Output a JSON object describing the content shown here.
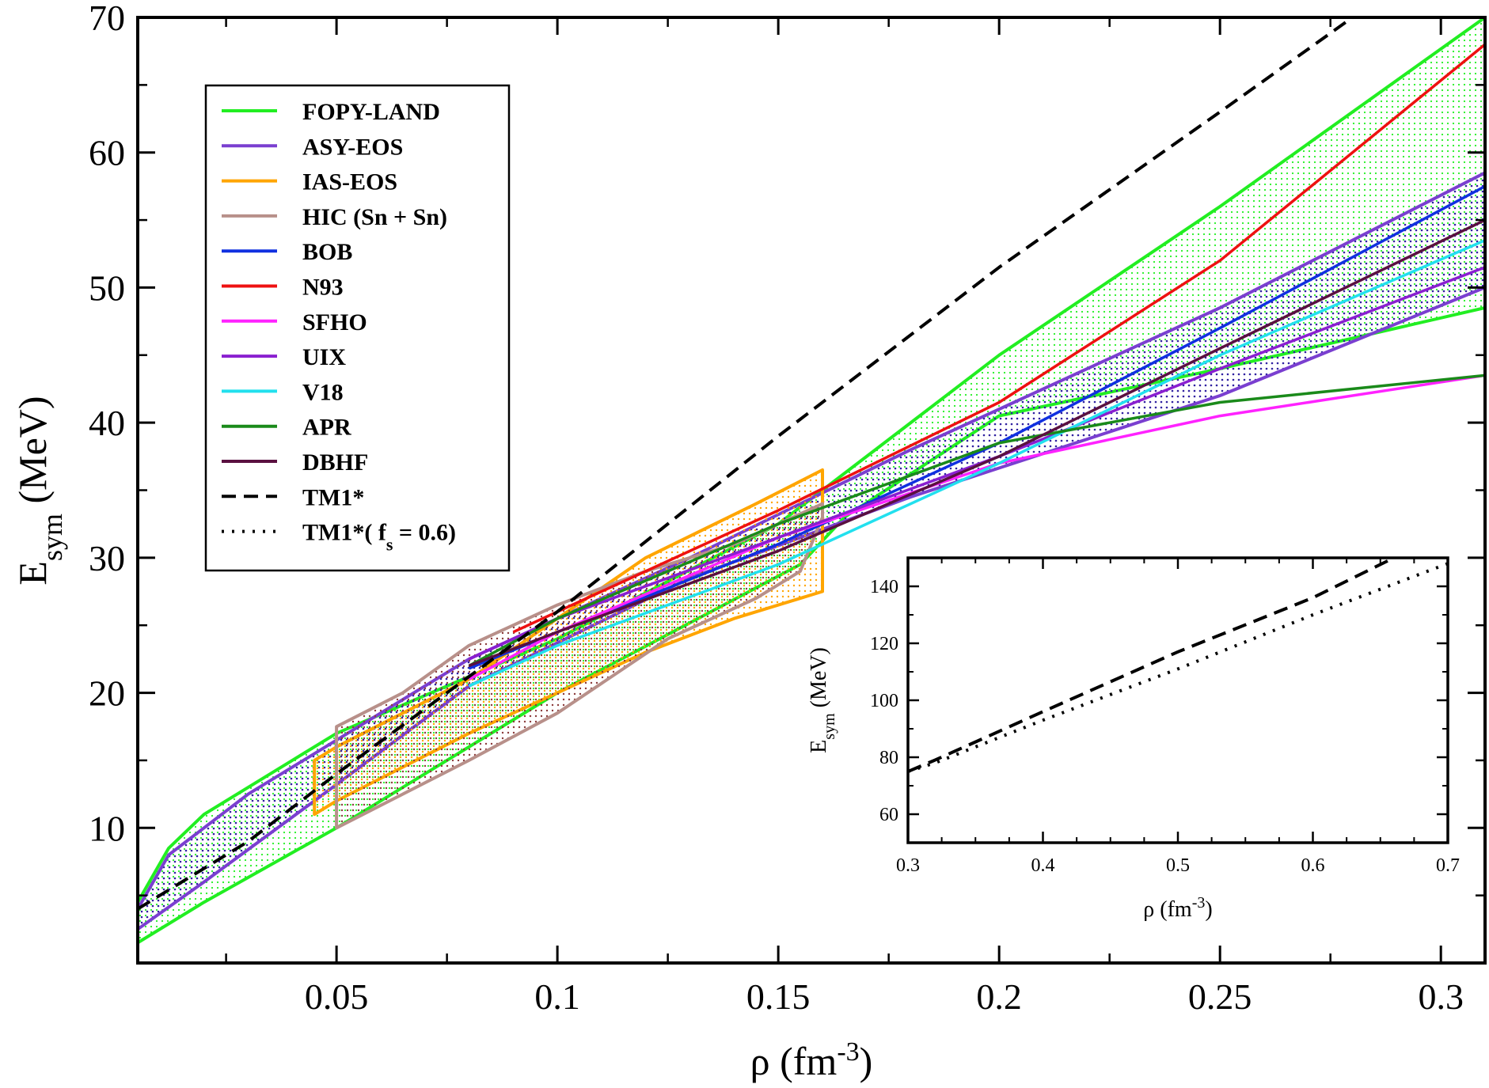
{
  "chart_data": [
    {
      "type": "line",
      "role": "main",
      "xlabel": {
        "base": "ρ (fm",
        "sup": "-3",
        "tail": ")"
      },
      "ylabel": {
        "base": "E",
        "sub": "sym",
        "tail": " (MeV)"
      },
      "xlim": [
        0.005,
        0.31
      ],
      "ylim": [
        0,
        70
      ],
      "xticks": [
        0.05,
        0.1,
        0.15,
        0.2,
        0.25,
        0.3
      ],
      "xtick_labels": [
        "0.05",
        "0.1",
        "0.15",
        "0.2",
        "0.25",
        "0.3"
      ],
      "yticks": [
        10,
        20,
        30,
        40,
        50,
        60,
        70
      ],
      "ytick_labels": [
        "10",
        "20",
        "30",
        "40",
        "50",
        "60",
        "70"
      ],
      "legend_position": "top-left",
      "bands": [
        {
          "name": "FOPY-LAND",
          "color": "#22ee22",
          "upper": [
            [
              0.005,
              4.5
            ],
            [
              0.012,
              8.5
            ],
            [
              0.02,
              11
            ],
            [
              0.04,
              15
            ],
            [
              0.05,
              17
            ],
            [
              0.1,
              24
            ],
            [
              0.15,
              32.5
            ],
            [
              0.2,
              45
            ],
            [
              0.25,
              56
            ],
            [
              0.31,
              70
            ]
          ],
          "lower": [
            [
              0.005,
              1.5
            ],
            [
              0.02,
              4.5
            ],
            [
              0.05,
              10
            ],
            [
              0.1,
              20
            ],
            [
              0.155,
              29.5
            ],
            [
              0.165,
              33
            ],
            [
              0.2,
              40.5
            ],
            [
              0.25,
              44
            ],
            [
              0.31,
              48.5
            ]
          ]
        },
        {
          "name": "ASY-EOS",
          "color": "#7a3fd0",
          "upper": [
            [
              0.005,
              4
            ],
            [
              0.012,
              8
            ],
            [
              0.03,
              12.5
            ],
            [
              0.045,
              15.5
            ],
            [
              0.08,
              22.5
            ],
            [
              0.13,
              30
            ],
            [
              0.18,
              38
            ],
            [
              0.25,
              48.5
            ],
            [
              0.31,
              58.5
            ]
          ],
          "lower": [
            [
              0.005,
              2.5
            ],
            [
              0.02,
              6
            ],
            [
              0.045,
              12
            ],
            [
              0.08,
              20.5
            ],
            [
              0.13,
              28.5
            ],
            [
              0.18,
              34.5
            ],
            [
              0.25,
              42
            ],
            [
              0.31,
              50
            ]
          ]
        },
        {
          "name": "IAS-EOS",
          "color": "#ffa500",
          "upper": [
            [
              0.045,
              15
            ],
            [
              0.05,
              16
            ],
            [
              0.08,
              21
            ],
            [
              0.12,
              30
            ],
            [
              0.145,
              34
            ],
            [
              0.16,
              36.5
            ]
          ],
          "lower": [
            [
              0.045,
              11
            ],
            [
              0.05,
              12
            ],
            [
              0.08,
              17
            ],
            [
              0.12,
              23
            ],
            [
              0.14,
              25.5
            ],
            [
              0.16,
              27.5
            ]
          ]
        },
        {
          "name": "HIC (Sn + Sn)",
          "color": "#b8908a",
          "upper": [
            [
              0.05,
              17.5
            ],
            [
              0.065,
              20
            ],
            [
              0.08,
              23.5
            ],
            [
              0.09,
              25
            ],
            [
              0.1,
              26.5
            ],
            [
              0.12,
              29
            ],
            [
              0.14,
              31
            ],
            [
              0.16,
              34
            ]
          ],
          "lower": [
            [
              0.05,
              10
            ],
            [
              0.065,
              12.5
            ],
            [
              0.08,
              15
            ],
            [
              0.1,
              18.5
            ],
            [
              0.125,
              24
            ],
            [
              0.145,
              27
            ],
            [
              0.155,
              29
            ],
            [
              0.16,
              33
            ]
          ]
        }
      ],
      "series": [
        {
          "name": "BOB",
          "color": "#1030e0",
          "dash": "solid",
          "points": [
            [
              0.08,
              21.8
            ],
            [
              0.1,
              24.5
            ],
            [
              0.15,
              31
            ],
            [
              0.2,
              38.5
            ],
            [
              0.25,
              47
            ],
            [
              0.31,
              57.5
            ]
          ]
        },
        {
          "name": "N93",
          "color": "#ee1111",
          "dash": "solid",
          "points": [
            [
              0.09,
              24.5
            ],
            [
              0.1,
              26
            ],
            [
              0.15,
              33.5
            ],
            [
              0.2,
              41.5
            ],
            [
              0.25,
              52
            ],
            [
              0.31,
              68
            ]
          ]
        },
        {
          "name": "SFHO",
          "color": "#ff22ff",
          "dash": "solid",
          "points": [
            [
              0.08,
              21
            ],
            [
              0.1,
              24.5
            ],
            [
              0.15,
              31.5
            ],
            [
              0.2,
              37
            ],
            [
              0.25,
              40.5
            ],
            [
              0.31,
              43.5
            ]
          ]
        },
        {
          "name": "UIX",
          "color": "#8a1fd0",
          "dash": "solid",
          "points": [
            [
              0.08,
              22.5
            ],
            [
              0.1,
              25.5
            ],
            [
              0.15,
              31.5
            ],
            [
              0.2,
              37.5
            ],
            [
              0.25,
              44
            ],
            [
              0.31,
              51.5
            ]
          ]
        },
        {
          "name": "V18",
          "color": "#22e0ee",
          "dash": "solid",
          "points": [
            [
              0.08,
              20.5
            ],
            [
              0.1,
              23.5
            ],
            [
              0.15,
              29.5
            ],
            [
              0.2,
              37
            ],
            [
              0.25,
              45
            ],
            [
              0.31,
              53.5
            ]
          ]
        },
        {
          "name": "APR",
          "color": "#1a8a1a",
          "dash": "solid",
          "points": [
            [
              0.08,
              22
            ],
            [
              0.1,
              25.5
            ],
            [
              0.15,
              32.5
            ],
            [
              0.2,
              38.5
            ],
            [
              0.25,
              41.5
            ],
            [
              0.31,
              43.5
            ]
          ]
        },
        {
          "name": "DBHF",
          "color": "#5a1040",
          "dash": "solid",
          "points": [
            [
              0.08,
              22
            ],
            [
              0.1,
              24.5
            ],
            [
              0.15,
              30.5
            ],
            [
              0.2,
              37.5
            ],
            [
              0.25,
              45.5
            ],
            [
              0.31,
              55
            ]
          ]
        },
        {
          "name": "TM1*",
          "color": "#000000",
          "dash": "dashed",
          "points": [
            [
              0.005,
              4
            ],
            [
              0.03,
              9
            ],
            [
              0.05,
              14
            ],
            [
              0.1,
              26
            ],
            [
              0.15,
              39
            ],
            [
              0.2,
              51.5
            ],
            [
              0.25,
              63
            ],
            [
              0.28,
              70
            ]
          ]
        },
        {
          "name": "TM1*( f",
          "name_sub": "s",
          "name_tail": " = 0.6)",
          "color": "#000000",
          "dash": "dotted",
          "points": []
        }
      ]
    },
    {
      "type": "line",
      "role": "inset",
      "xlabel": {
        "base": "ρ (fm",
        "sup": "-3",
        "tail": ")"
      },
      "ylabel": {
        "base": "E",
        "sub": "sym",
        "tail": " (MeV)"
      },
      "xlim": [
        0.3,
        0.7
      ],
      "ylim": [
        50,
        150
      ],
      "xticks": [
        0.3,
        0.4,
        0.5,
        0.6,
        0.7
      ],
      "xtick_labels": [
        "0.3",
        "0.4",
        "0.5",
        "0.6",
        "0.7"
      ],
      "yticks": [
        60,
        80,
        100,
        120,
        140
      ],
      "ytick_labels": [
        "60",
        "80",
        "100",
        "120",
        "140"
      ],
      "series": [
        {
          "name": "TM1*",
          "color": "#000000",
          "dash": "dashed",
          "points": [
            [
              0.3,
              75
            ],
            [
              0.32,
              79
            ],
            [
              0.4,
              96
            ],
            [
              0.5,
              117
            ],
            [
              0.6,
              136
            ],
            [
              0.66,
              150
            ]
          ]
        },
        {
          "name": "TM1*( f = 0.6)",
          "color": "#000000",
          "dash": "dotted",
          "points": [
            [
              0.3,
              75
            ],
            [
              0.32,
              78
            ],
            [
              0.4,
              93
            ],
            [
              0.5,
              111
            ],
            [
              0.6,
              130
            ],
            [
              0.7,
              148
            ]
          ]
        }
      ]
    }
  ]
}
